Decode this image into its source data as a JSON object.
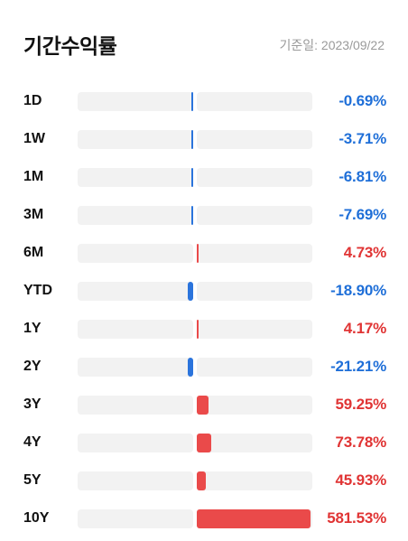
{
  "header": {
    "title": "기간수익률",
    "as_of": "기준일: 2023/09/22"
  },
  "colors": {
    "negative": "#1f6fd8",
    "positive": "#e03434",
    "bar_negative": "#2b74dc",
    "bar_positive": "#ea4a4a",
    "track": "#f2f2f2"
  },
  "returns": [
    {
      "period": "1D",
      "value_label": "-0.69%",
      "value": -0.69
    },
    {
      "period": "1W",
      "value_label": "-3.71%",
      "value": -3.71
    },
    {
      "period": "1M",
      "value_label": "-6.81%",
      "value": -6.81
    },
    {
      "period": "3M",
      "value_label": "-7.69%",
      "value": -7.69
    },
    {
      "period": "6M",
      "value_label": "4.73%",
      "value": 4.73
    },
    {
      "period": "YTD",
      "value_label": "-18.90%",
      "value": -18.9
    },
    {
      "period": "1Y",
      "value_label": "4.17%",
      "value": 4.17
    },
    {
      "period": "2Y",
      "value_label": "-21.21%",
      "value": -21.21
    },
    {
      "period": "3Y",
      "value_label": "59.25%",
      "value": 59.25
    },
    {
      "period": "4Y",
      "value_label": "73.78%",
      "value": 73.78
    },
    {
      "period": "5Y",
      "value_label": "45.93%",
      "value": 45.93
    },
    {
      "period": "10Y",
      "value_label": "581.53%",
      "value": 581.53
    }
  ]
}
